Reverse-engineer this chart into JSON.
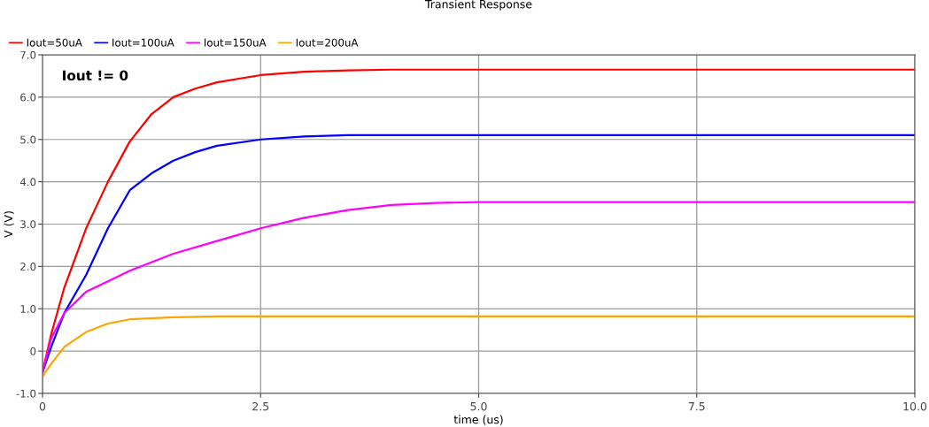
{
  "chart_data": {
    "type": "line",
    "title": "Transient Response",
    "xlabel": "time (us)",
    "ylabel": "V (V)",
    "annotations": [
      "Iout != 0"
    ],
    "series": [
      {
        "name": "Iout=50uA",
        "color": "#ff0000",
        "x": [
          0,
          0.1,
          0.25,
          0.5,
          0.75,
          1,
          1.25,
          1.5,
          1.75,
          2,
          2.5,
          3,
          3.5,
          4,
          5,
          6,
          7,
          8,
          9,
          10
        ],
        "values": [
          -0.5,
          0.4,
          1.5,
          2.9,
          4.0,
          4.95,
          5.6,
          6.0,
          6.2,
          6.35,
          6.52,
          6.6,
          6.63,
          6.65,
          6.65,
          6.65,
          6.65,
          6.65,
          6.65,
          6.65
        ]
      },
      {
        "name": "Iout=100uA",
        "color": "#0000ff",
        "x": [
          0,
          0.1,
          0.25,
          0.5,
          0.75,
          1,
          1.25,
          1.5,
          1.75,
          2,
          2.5,
          3,
          3.5,
          4,
          5,
          6,
          7,
          8,
          9,
          10
        ],
        "values": [
          -0.5,
          0.1,
          0.9,
          1.8,
          2.9,
          3.8,
          4.2,
          4.5,
          4.7,
          4.85,
          5.0,
          5.07,
          5.1,
          5.1,
          5.1,
          5.1,
          5.1,
          5.1,
          5.1,
          5.1
        ]
      },
      {
        "name": "Iout=150uA",
        "color": "#ff00ff",
        "x": [
          0,
          0.1,
          0.25,
          0.5,
          0.75,
          1,
          1.5,
          2,
          2.5,
          3,
          3.5,
          4,
          4.5,
          5,
          6,
          7,
          8,
          9,
          10
        ],
        "values": [
          -0.5,
          0.3,
          0.9,
          1.4,
          1.65,
          1.9,
          2.3,
          2.6,
          2.9,
          3.15,
          3.33,
          3.45,
          3.5,
          3.52,
          3.52,
          3.52,
          3.52,
          3.52,
          3.52
        ]
      },
      {
        "name": "Iout=200uA",
        "color": "#ffa500",
        "x": [
          0,
          0.1,
          0.25,
          0.5,
          0.75,
          1,
          1.5,
          2,
          3,
          4,
          5,
          6,
          7,
          8,
          9,
          10
        ],
        "values": [
          -0.6,
          -0.3,
          0.1,
          0.45,
          0.65,
          0.75,
          0.8,
          0.82,
          0.82,
          0.82,
          0.82,
          0.82,
          0.82,
          0.82,
          0.82,
          0.82
        ]
      }
    ],
    "xlim": [
      0,
      10
    ],
    "xticks": [
      0,
      {
        "value": 2.5,
        "label": "2.5"
      },
      {
        "value": 5,
        "label": "5.0"
      },
      {
        "value": 7.5,
        "label": "7.5"
      },
      {
        "value": 10,
        "label": "10.0"
      }
    ],
    "ylim": [
      -1,
      7
    ],
    "yticks": [
      {
        "value": -1,
        "label": "-1.0"
      },
      0,
      {
        "value": 1,
        "label": "1.0"
      },
      {
        "value": 2,
        "label": "2.0"
      },
      {
        "value": 3,
        "label": "3.0"
      },
      {
        "value": 4,
        "label": "4.0"
      },
      {
        "value": 5,
        "label": "5.0"
      },
      {
        "value": 6,
        "label": "6.0"
      },
      {
        "value": 7,
        "label": "7.0"
      }
    ],
    "grid": true,
    "legend": "top left",
    "marker": "none",
    "line_style": "solid"
  }
}
